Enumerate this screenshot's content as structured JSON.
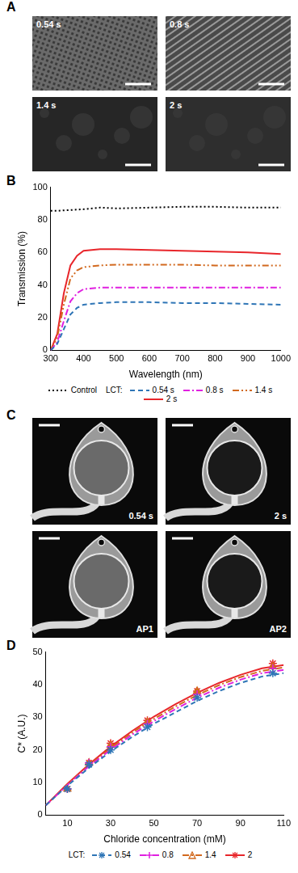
{
  "panels": {
    "A": {
      "label": "A",
      "images": [
        "0.54 s",
        "0.8 s",
        "1.4 s",
        "2 s"
      ]
    },
    "C": {
      "label": "C",
      "images": [
        "0.54 s",
        "2 s",
        "AP1",
        "AP2"
      ]
    }
  },
  "chart_data": [
    {
      "label": "B",
      "type": "line",
      "x_label": "Wavelength (nm)",
      "y_label": "Transmission (%)",
      "x": [
        300,
        320,
        340,
        360,
        380,
        400,
        450,
        500,
        600,
        700,
        800,
        900,
        1000
      ],
      "xlim": [
        300,
        1000
      ],
      "xticks": [
        300,
        400,
        500,
        600,
        700,
        800,
        900,
        1000
      ],
      "ylim": [
        0,
        100
      ],
      "yticks": [
        0,
        20,
        40,
        60,
        80,
        100
      ],
      "grid": false,
      "legend": "bottom",
      "legend_title": "LCT:",
      "reference": {
        "name": "Control",
        "color": "#000000",
        "line_style": "dotted",
        "values": [
          85.5,
          85.5,
          85.8,
          86,
          86.3,
          86.5,
          87.5,
          87,
          87.5,
          88,
          88,
          87.5,
          87.5
        ]
      },
      "series": [
        {
          "name": "0.54 s",
          "color": "#2e75b6",
          "line_style": "dashed",
          "values": [
            0,
            4,
            13,
            22,
            26,
            28,
            29,
            29.5,
            29.5,
            29,
            29,
            28.5,
            28
          ]
        },
        {
          "name": "0.8 s",
          "color": "#e020e0",
          "line_style": "dashdot",
          "values": [
            0,
            5,
            18,
            30,
            35,
            37.5,
            38.5,
            38.5,
            38.5,
            38.5,
            38.5,
            38.5,
            38.5
          ]
        },
        {
          "name": "1.4 s",
          "color": "#d2691e",
          "line_style": "dashdotdot",
          "values": [
            0,
            8,
            28,
            44,
            49,
            51,
            52,
            52.5,
            52.5,
            52.5,
            52,
            52,
            52
          ]
        },
        {
          "name": "2 s",
          "color": "#e8262b",
          "line_style": "solid",
          "values": [
            0,
            10,
            35,
            52,
            58,
            61,
            62,
            62,
            61.5,
            61,
            60.5,
            60,
            59
          ]
        }
      ]
    },
    {
      "label": "D",
      "type": "scatter",
      "x_label": "Chloride concentration (mM)",
      "y_label": "C* (A.U.)",
      "xlim": [
        0,
        110
      ],
      "xticks": [
        10,
        30,
        50,
        70,
        90,
        110
      ],
      "ylim": [
        0,
        50
      ],
      "yticks": [
        0,
        10,
        20,
        30,
        40,
        50
      ],
      "grid": false,
      "legend": "bottom",
      "legend_title": "LCT:",
      "series": [
        {
          "name": "0.54",
          "color": "#2e75b6",
          "marker": "star",
          "line_style": "dashed",
          "x": [
            10,
            20,
            30,
            47,
            70,
            105
          ],
          "values": [
            8,
            15.5,
            20,
            27,
            36,
            43.5
          ],
          "fit_x": [
            0,
            10,
            20,
            30,
            40,
            50,
            60,
            70,
            80,
            90,
            100,
            110
          ],
          "fit": [
            3,
            9,
            14.5,
            19.5,
            24,
            28,
            31.5,
            35,
            38,
            40.5,
            42.5,
            43.5
          ]
        },
        {
          "name": "0.8",
          "color": "#e020e0",
          "marker": "cross",
          "line_style": "dashdot",
          "x": [
            10,
            20,
            30,
            47,
            70,
            105
          ],
          "values": [
            8,
            16,
            21,
            28,
            37,
            45
          ],
          "fit_x": [
            0,
            10,
            20,
            30,
            40,
            50,
            60,
            70,
            80,
            90,
            100,
            110
          ],
          "fit": [
            3,
            9.2,
            15,
            20,
            24.7,
            28.8,
            32.5,
            36,
            39,
            41.5,
            43.5,
            44.5
          ]
        },
        {
          "name": "1.4",
          "color": "#d2691e",
          "marker": "triangle",
          "line_style": "dashdot",
          "x": [
            10,
            20,
            30,
            47,
            70,
            105
          ],
          "values": [
            8,
            16,
            21.5,
            28.5,
            38,
            45.5
          ],
          "fit_x": [
            0,
            10,
            20,
            30,
            40,
            50,
            60,
            70,
            80,
            90,
            100,
            110
          ],
          "fit": [
            3,
            9.4,
            15.3,
            20.5,
            25.3,
            29.5,
            33.3,
            36.8,
            39.8,
            42.3,
            44.2,
            45.3
          ]
        },
        {
          "name": "2",
          "color": "#e8262b",
          "marker": "star",
          "line_style": "solid",
          "x": [
            10,
            20,
            30,
            47,
            70,
            105
          ],
          "values": [
            8,
            16,
            22,
            29,
            38,
            46.5
          ],
          "fit_x": [
            0,
            10,
            20,
            30,
            40,
            50,
            60,
            70,
            80,
            90,
            100,
            110
          ],
          "fit": [
            3,
            9.6,
            15.6,
            21,
            25.8,
            30.2,
            34,
            37.5,
            40.5,
            43,
            45,
            46
          ]
        }
      ]
    }
  ]
}
